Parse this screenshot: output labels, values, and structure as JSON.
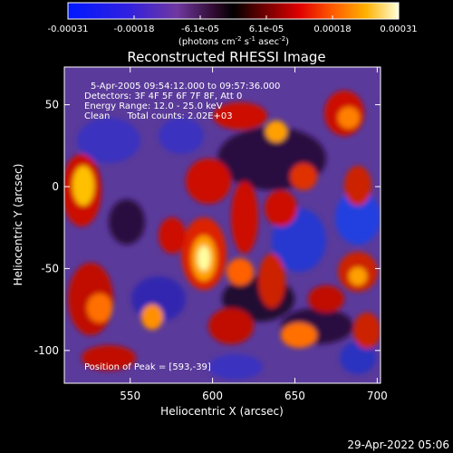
{
  "colorbar": {
    "ticks": [
      "-0.00031",
      "-0.00018",
      "-6.1e-05",
      "6.1e-05",
      "0.00018",
      "0.00031"
    ],
    "units_label_parts": [
      "(photons cm",
      "-2",
      " s",
      "-1",
      " asec",
      "-2",
      ")"
    ]
  },
  "image": {
    "title": "Reconstructed RHESSI Image",
    "info_lines": [
      "5-Apr-2005 09:54:12.000 to 09:57:36.000",
      "Detectors: 3F 4F 5F 6F 7F 8F, Att 0",
      "Energy Range: 12.0 - 25.0 keV",
      "Clean      Total counts: 2.02E+03"
    ],
    "peak_text": "Position of Peak = [593,-39]",
    "xlabel": "Heliocentric X (arcsec)",
    "ylabel": "Heliocentric Y (arcsec)",
    "xticks": [
      "550",
      "600",
      "650",
      "700"
    ],
    "yticks": [
      "50",
      "0",
      "-50",
      "-100"
    ],
    "x_range": [
      510,
      702
    ],
    "y_range": [
      -120,
      73
    ]
  },
  "timestamp": "29-Apr-2022 05:06",
  "colors": {
    "bg": "#000000",
    "axis": "#ffffff"
  }
}
